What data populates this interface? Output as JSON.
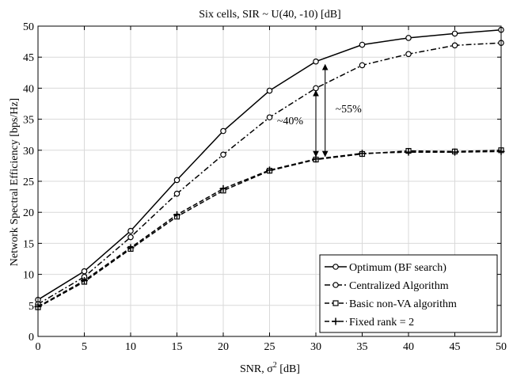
{
  "chart_data": {
    "type": "line",
    "title": "Six cells, SIR ~ U(40, -10) [dB]",
    "xlabel": "SNR, σ",
    "xlabel_sup": "2",
    "xlabel_unit": " [dB]",
    "ylabel": "Network Spectral Efficiency [bps/Hz]",
    "xlim": [
      0,
      50
    ],
    "ylim": [
      0,
      50
    ],
    "xticks": [
      0,
      5,
      10,
      15,
      20,
      25,
      30,
      35,
      40,
      45,
      50
    ],
    "yticks": [
      0,
      5,
      10,
      15,
      20,
      25,
      30,
      35,
      40,
      45,
      50
    ],
    "grid": true,
    "legend_position": "bottom-right",
    "x": [
      0,
      5,
      10,
      15,
      20,
      25,
      30,
      35,
      40,
      45,
      50
    ],
    "series": [
      {
        "name": "Optimum (BF search)",
        "marker": "circle",
        "dash": "solid",
        "values": [
          5.9,
          10.5,
          17.0,
          25.2,
          33.1,
          39.6,
          44.3,
          47.0,
          48.1,
          48.8,
          49.4
        ]
      },
      {
        "name": "Centralized Algorithm",
        "marker": "circle",
        "dash": "dashdot",
        "values": [
          5.2,
          9.6,
          16.0,
          23.0,
          29.3,
          35.3,
          40.0,
          43.7,
          45.5,
          46.9,
          47.3
        ]
      },
      {
        "name": "Basic non-VA algorithm",
        "marker": "square",
        "dash": "dashed",
        "values": [
          4.7,
          8.8,
          14.1,
          19.3,
          23.5,
          26.7,
          28.5,
          29.4,
          29.9,
          29.8,
          30.0
        ]
      },
      {
        "name": "Fixed rank = 2",
        "marker": "plus",
        "dash": "dashed",
        "values": [
          4.8,
          9.0,
          14.3,
          19.6,
          23.8,
          26.8,
          28.6,
          29.5,
          29.7,
          29.7,
          29.8
        ]
      }
    ],
    "annotations": [
      {
        "text": "~40%",
        "x_from": 30,
        "y_from": 29.0,
        "y_to": 39.6,
        "label_x": 25.8,
        "label_y": 34.2
      },
      {
        "text": "~55%",
        "x_from": 31,
        "y_from": 29.0,
        "y_to": 43.8,
        "label_x": 32.1,
        "label_y": 36.1
      }
    ]
  }
}
